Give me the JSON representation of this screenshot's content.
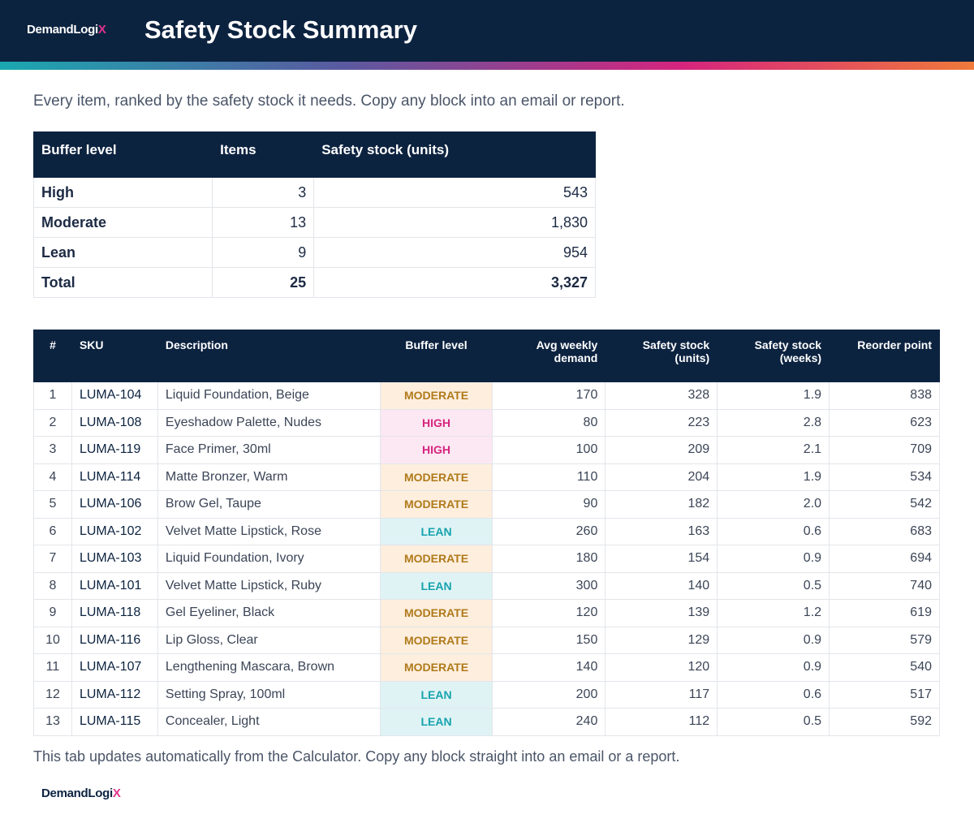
{
  "header": {
    "logo": {
      "name": "DemandLogi",
      "accent": "X"
    },
    "title": "Safety Stock Summary"
  },
  "intro": "Every item, ranked by the safety stock it needs. Copy any block into an email or report.",
  "summary_table": {
    "columns": [
      "Buffer level",
      "Items",
      "Safety stock (units)"
    ],
    "rows": [
      [
        "High",
        "3",
        "543"
      ],
      [
        "Moderate",
        "13",
        "1,830"
      ],
      [
        "Lean",
        "9",
        "954"
      ],
      [
        "Total",
        "25",
        "3,327"
      ]
    ]
  },
  "items_table": {
    "columns": [
      "#",
      "SKU",
      "Description",
      "Buffer level",
      "Avg weekly demand",
      "Safety stock (units)",
      "Safety stock (weeks)",
      "Reorder point"
    ],
    "buffer_styles": {
      "HIGH": {
        "color": "#d6247e",
        "bg": "#fce8f3"
      },
      "MODERATE": {
        "color": "#b07a1a",
        "bg": "#fdeede"
      },
      "LEAN": {
        "color": "#17a3ad",
        "bg": "#dff3f5"
      }
    },
    "rows": [
      [
        "1",
        "LUMA-104",
        "Liquid Foundation, Beige",
        "MODERATE",
        "170",
        "328",
        "1.9",
        "838"
      ],
      [
        "2",
        "LUMA-108",
        "Eyeshadow Palette, Nudes",
        "HIGH",
        "80",
        "223",
        "2.8",
        "623"
      ],
      [
        "3",
        "LUMA-119",
        "Face Primer, 30ml",
        "HIGH",
        "100",
        "209",
        "2.1",
        "709"
      ],
      [
        "4",
        "LUMA-114",
        "Matte Bronzer, Warm",
        "MODERATE",
        "110",
        "204",
        "1.9",
        "534"
      ],
      [
        "5",
        "LUMA-106",
        "Brow Gel, Taupe",
        "MODERATE",
        "90",
        "182",
        "2.0",
        "542"
      ],
      [
        "6",
        "LUMA-102",
        "Velvet Matte Lipstick, Rose",
        "LEAN",
        "260",
        "163",
        "0.6",
        "683"
      ],
      [
        "7",
        "LUMA-103",
        "Liquid Foundation, Ivory",
        "MODERATE",
        "180",
        "154",
        "0.9",
        "694"
      ],
      [
        "8",
        "LUMA-101",
        "Velvet Matte Lipstick, Ruby",
        "LEAN",
        "300",
        "140",
        "0.5",
        "740"
      ],
      [
        "9",
        "LUMA-118",
        "Gel Eyeliner, Black",
        "MODERATE",
        "120",
        "139",
        "1.2",
        "619"
      ],
      [
        "10",
        "LUMA-116",
        "Lip Gloss, Clear",
        "MODERATE",
        "150",
        "129",
        "0.9",
        "579"
      ],
      [
        "11",
        "LUMA-107",
        "Lengthening Mascara, Brown",
        "MODERATE",
        "140",
        "120",
        "0.9",
        "540"
      ],
      [
        "12",
        "LUMA-112",
        "Setting Spray, 100ml",
        "LEAN",
        "200",
        "117",
        "0.6",
        "517"
      ],
      [
        "13",
        "LUMA-115",
        "Concealer, Light",
        "LEAN",
        "240",
        "112",
        "0.5",
        "592"
      ]
    ]
  },
  "footer": {
    "note": "This tab updates automatically from the Calculator. Copy any block straight into an email or a report.",
    "logo": {
      "name": "DemandLogi",
      "accent": "X"
    }
  }
}
